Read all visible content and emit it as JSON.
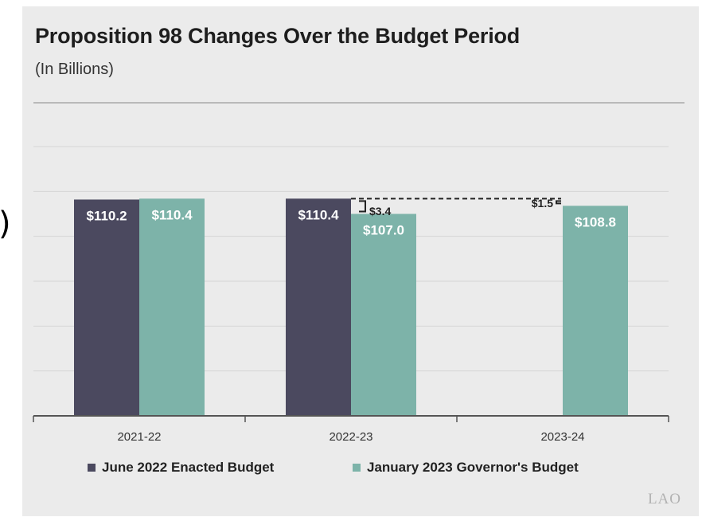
{
  "chart_data": {
    "type": "bar",
    "title": "Proposition 98 Changes Over the Budget Period",
    "subtitle": "(In Billions)",
    "categories": [
      "2021-22",
      "2022-23",
      "2023-24"
    ],
    "series": [
      {
        "name": "June 2022 Enacted Budget",
        "values": [
          110.2,
          110.4,
          null
        ],
        "labels": [
          "$110.2",
          "$110.4",
          ""
        ],
        "color": "#4b495f"
      },
      {
        "name": "January 2023 Governor's Budget",
        "values": [
          110.4,
          107.0,
          108.8
        ],
        "labels": [
          "$110.4",
          "$107.0",
          "$108.8"
        ],
        "color": "#7db3a9"
      }
    ],
    "annotations": [
      {
        "text": "$3.4",
        "category": "2022-23",
        "from": 110.4,
        "to": 107.0
      },
      {
        "text": "$1.5",
        "category": "2023-24",
        "from": 110.4,
        "to": 108.8
      }
    ],
    "ylim": [
      62,
      122
    ],
    "grid": true,
    "legend": "bottom"
  },
  "brand": "LAO",
  "edge_glyph": ")"
}
